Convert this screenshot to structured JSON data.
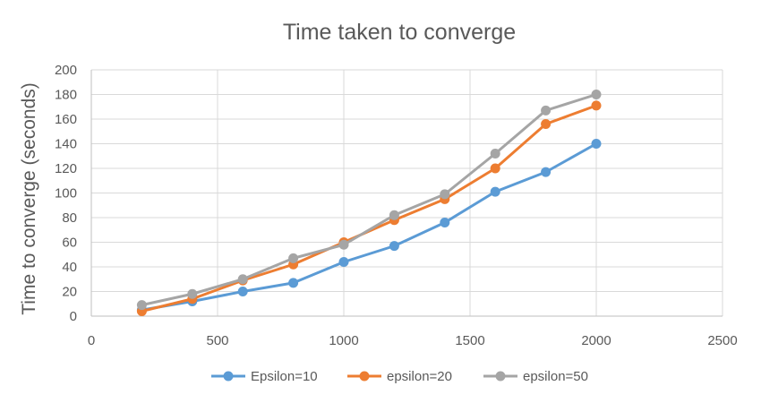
{
  "chart_data": {
    "type": "line",
    "title": "Time taken to converge",
    "xlabel": "",
    "ylabel": "Time to converge (seconds)",
    "xlim": [
      0,
      2500
    ],
    "ylim": [
      0,
      200
    ],
    "xticks": [
      0,
      500,
      1000,
      1500,
      2000,
      2500
    ],
    "yticks": [
      0,
      20,
      40,
      60,
      80,
      100,
      120,
      140,
      160,
      180,
      200
    ],
    "x": [
      200,
      400,
      600,
      800,
      1000,
      1200,
      1400,
      1600,
      1800,
      2000
    ],
    "grid": true,
    "legend_position": "bottom",
    "series": [
      {
        "name": "Epsilon=10",
        "color": "#5b9bd5",
        "values": [
          5,
          12,
          20,
          27,
          44,
          57,
          76,
          101,
          117,
          140
        ]
      },
      {
        "name": "epsilon=20",
        "color": "#ed7d31",
        "values": [
          4,
          14,
          29,
          42,
          60,
          78,
          95,
          120,
          156,
          171
        ]
      },
      {
        "name": "epsilon=50",
        "color": "#a5a5a5",
        "values": [
          9,
          18,
          30,
          47,
          58,
          82,
          99,
          132,
          167,
          180
        ]
      }
    ]
  }
}
